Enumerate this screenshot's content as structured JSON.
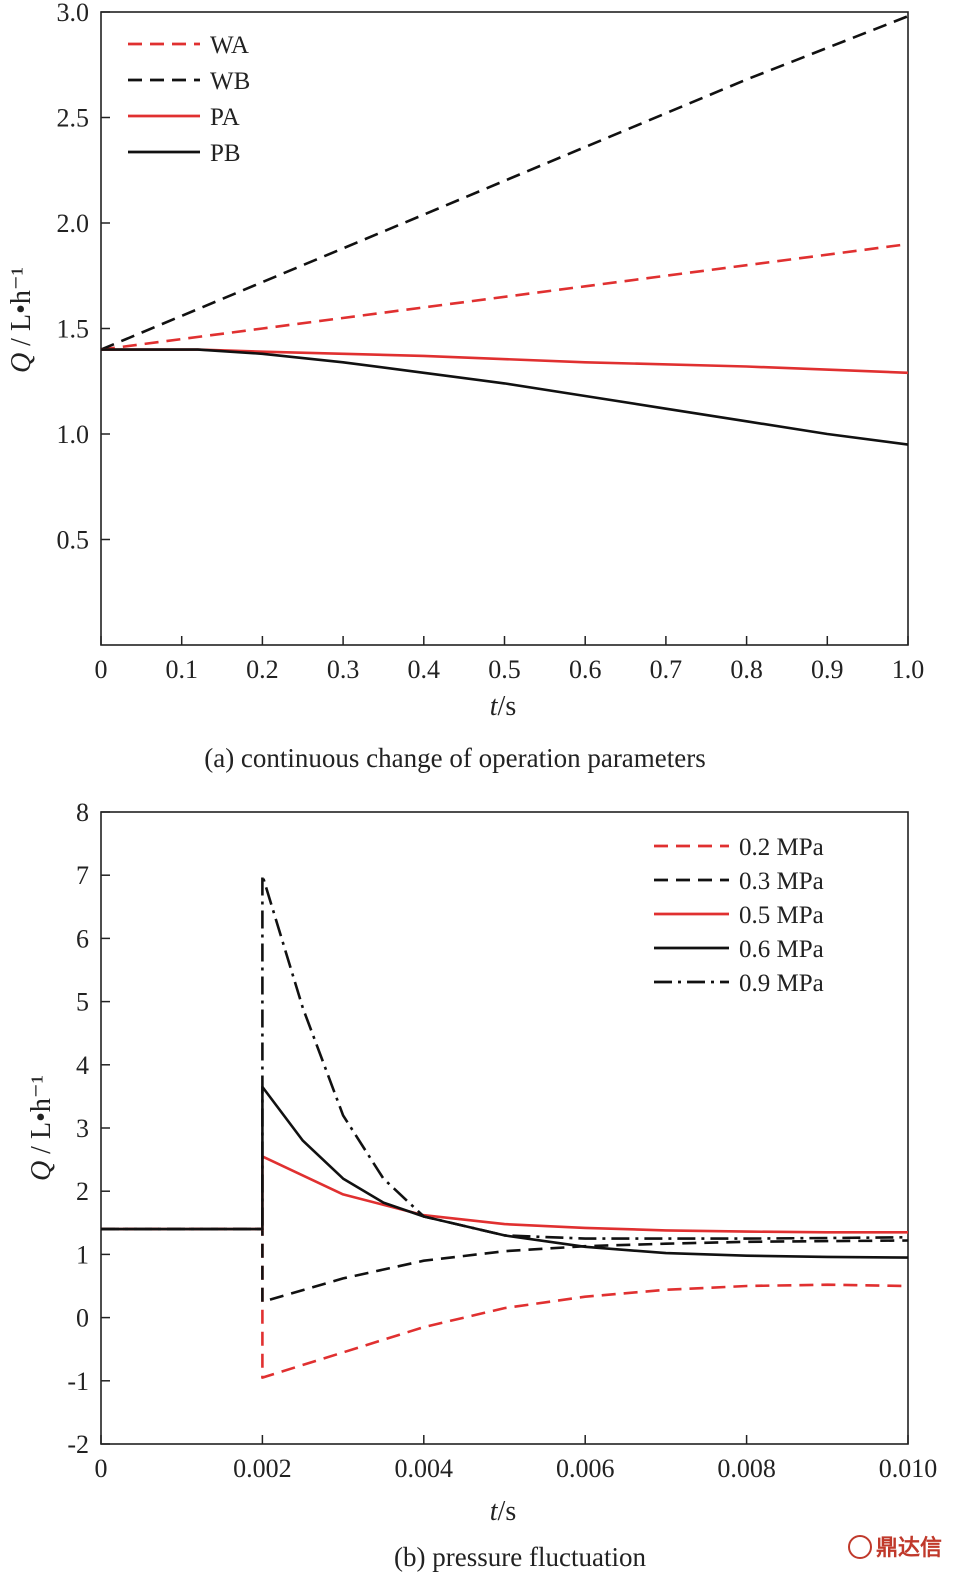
{
  "chart_data": [
    {
      "type": "line",
      "caption": "(a) continuous change of operation parameters",
      "xlabel": "t/s",
      "ylabel": "Q / L•h⁻¹",
      "xlim": [
        0,
        1.0
      ],
      "ylim": [
        0,
        3.0
      ],
      "xticks": [
        "0",
        "0.1",
        "0.2",
        "0.3",
        "0.4",
        "0.5",
        "0.6",
        "0.7",
        "0.8",
        "0.9",
        "1.0"
      ],
      "yticks": [
        "0.5",
        "1.0",
        "1.5",
        "2.0",
        "2.5",
        "3.0"
      ],
      "grid": false,
      "legend_position": "top-left",
      "series": [
        {
          "name": "WA",
          "color": "#e03030",
          "style": "dashed",
          "x": [
            0,
            0.2,
            0.4,
            0.6,
            0.8,
            1.0
          ],
          "y": [
            1.4,
            1.5,
            1.6,
            1.7,
            1.8,
            1.9
          ]
        },
        {
          "name": "WB",
          "color": "#111111",
          "style": "dashed",
          "x": [
            0,
            0.2,
            0.4,
            0.6,
            0.8,
            1.0
          ],
          "y": [
            1.4,
            1.72,
            2.04,
            2.36,
            2.68,
            2.98
          ]
        },
        {
          "name": "PA",
          "color": "#e03030",
          "style": "solid",
          "x": [
            0,
            0.12,
            0.2,
            0.4,
            0.6,
            0.8,
            1.0
          ],
          "y": [
            1.4,
            1.4,
            1.39,
            1.37,
            1.34,
            1.32,
            1.29
          ]
        },
        {
          "name": "PB",
          "color": "#111111",
          "style": "solid",
          "x": [
            0,
            0.12,
            0.2,
            0.3,
            0.4,
            0.5,
            0.6,
            0.7,
            0.8,
            0.9,
            1.0
          ],
          "y": [
            1.4,
            1.4,
            1.38,
            1.34,
            1.29,
            1.24,
            1.18,
            1.12,
            1.06,
            1.0,
            0.95
          ]
        }
      ]
    },
    {
      "type": "line",
      "caption": "(b) pressure fluctuation",
      "xlabel": "t/s",
      "ylabel": "Q / L•h⁻¹",
      "xlim": [
        0,
        0.01
      ],
      "ylim": [
        -2,
        8
      ],
      "xticks": [
        "0",
        "0.002",
        "0.004",
        "0.006",
        "0.008",
        "0.010"
      ],
      "yticks": [
        "-2",
        "-1",
        "0",
        "1",
        "2",
        "3",
        "4",
        "5",
        "6",
        "7",
        "8"
      ],
      "grid": false,
      "legend_position": "top-right",
      "series": [
        {
          "name": "0.2 MPa",
          "color": "#e03030",
          "style": "dashed",
          "x": [
            0,
            0.002,
            0.002,
            0.003,
            0.004,
            0.005,
            0.006,
            0.007,
            0.008,
            0.009,
            0.01
          ],
          "y": [
            1.4,
            1.4,
            -0.95,
            -0.55,
            -0.15,
            0.15,
            0.33,
            0.44,
            0.5,
            0.52,
            0.5
          ]
        },
        {
          "name": "0.3 MPa",
          "color": "#111111",
          "style": "dashed",
          "x": [
            0,
            0.002,
            0.002,
            0.003,
            0.004,
            0.005,
            0.006,
            0.007,
            0.008,
            0.009,
            0.01
          ],
          "y": [
            1.4,
            1.4,
            0.25,
            0.62,
            0.9,
            1.05,
            1.13,
            1.17,
            1.2,
            1.21,
            1.22
          ]
        },
        {
          "name": "0.5 MPa",
          "color": "#e03030",
          "style": "solid",
          "x": [
            0,
            0.002,
            0.002,
            0.003,
            0.004,
            0.005,
            0.006,
            0.007,
            0.008,
            0.009,
            0.01
          ],
          "y": [
            1.4,
            1.4,
            2.55,
            1.95,
            1.62,
            1.48,
            1.42,
            1.38,
            1.36,
            1.35,
            1.35
          ]
        },
        {
          "name": "0.6 MPa",
          "color": "#111111",
          "style": "solid",
          "x": [
            0,
            0.002,
            0.002,
            0.0025,
            0.003,
            0.0035,
            0.004,
            0.005,
            0.006,
            0.007,
            0.008,
            0.009,
            0.01
          ],
          "y": [
            1.4,
            1.4,
            3.65,
            2.8,
            2.2,
            1.82,
            1.6,
            1.3,
            1.12,
            1.02,
            0.98,
            0.96,
            0.95
          ]
        },
        {
          "name": "0.9 MPa",
          "color": "#111111",
          "style": "dashdot",
          "x": [
            0,
            0.002,
            0.002,
            0.0025,
            0.003,
            0.0035,
            0.004,
            0.005,
            0.006,
            0.007,
            0.008,
            0.009,
            0.01
          ],
          "y": [
            1.4,
            1.4,
            7.0,
            4.9,
            3.2,
            2.2,
            1.6,
            1.3,
            1.25,
            1.25,
            1.25,
            1.26,
            1.27
          ]
        }
      ]
    }
  ],
  "watermark": "鼎达信"
}
